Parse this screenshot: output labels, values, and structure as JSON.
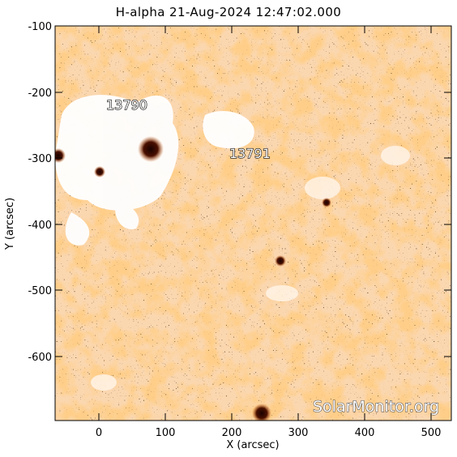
{
  "title": "H-alpha 21-Aug-2024 12:47:02.000",
  "axes": {
    "xlabel": "X (arcsec)",
    "ylabel": "Y (arcsec)",
    "x_ticks": [
      "0",
      "100",
      "200",
      "300",
      "400",
      "500"
    ],
    "y_ticks": [
      "-100",
      "-200",
      "-300",
      "-400",
      "-500",
      "-600"
    ]
  },
  "regions": [
    {
      "id": "13790"
    },
    {
      "id": "13791"
    }
  ],
  "watermark": "SolarMonitor.org",
  "colors": {
    "background_orange": "#f08a2c",
    "dark_orange": "#c85a10",
    "light": "#fde3c8",
    "sunspot": "#3a0a00"
  }
}
